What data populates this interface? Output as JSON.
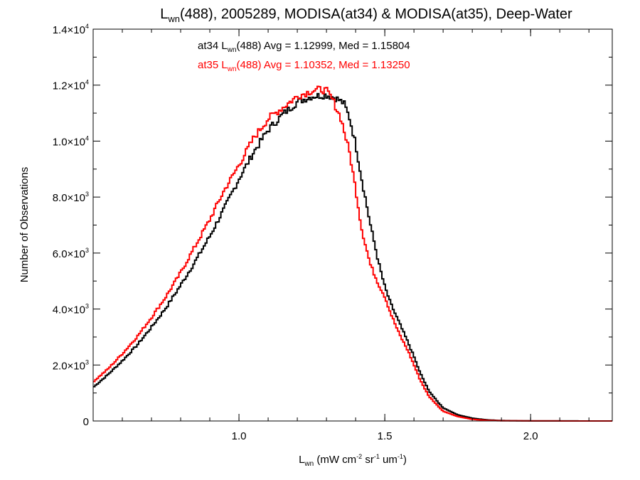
{
  "chart_data": {
    "type": "line",
    "style": "step-histogram",
    "title": {
      "base": "L",
      "sub": "wn",
      "rest": "(488), 2005289, MODISA(at34) & MODISA(at35), Deep-Water"
    },
    "xlabel": {
      "base": "L",
      "sub": "wn",
      "p1": " (mW cm",
      "s1": "-2",
      "p2": " sr",
      "s2": "-1",
      "p3": " um",
      "s3": "-1",
      "p4": ")"
    },
    "ylabel": "Number of Observations",
    "xlim": [
      0.5,
      2.28
    ],
    "ylim": [
      0,
      14000
    ],
    "x_ticks": [
      {
        "value": 1.0,
        "label": "1.0"
      },
      {
        "value": 1.5,
        "label": "1.5"
      },
      {
        "value": 2.0,
        "label": "2.0"
      }
    ],
    "y_ticks": [
      {
        "value": 0,
        "mant": "0",
        "exp": ""
      },
      {
        "value": 2000,
        "mant": "2.0×10",
        "exp": "3"
      },
      {
        "value": 4000,
        "mant": "4.0×10",
        "exp": "3"
      },
      {
        "value": 6000,
        "mant": "6.0×10",
        "exp": "3"
      },
      {
        "value": 8000,
        "mant": "8.0×10",
        "exp": "3"
      },
      {
        "value": 10000,
        "mant": "1.0×10",
        "exp": "4"
      },
      {
        "value": 12000,
        "mant": "1.2×10",
        "exp": "4"
      },
      {
        "value": 14000,
        "mant": "1.4×10",
        "exp": "4"
      }
    ],
    "annotations": [
      {
        "prefix": "at34 L",
        "sub": "wn",
        "rest": "(488) Avg = 1.12999, Med = 1.15804",
        "color": "#000000"
      },
      {
        "prefix": "at35 L",
        "sub": "wn",
        "rest": "(488) Avg = 1.10352, Med = 1.13250",
        "color": "#ff0000"
      }
    ],
    "series": [
      {
        "color": "#000000",
        "x": [
          0.5,
          0.55,
          0.6,
          0.65,
          0.7,
          0.75,
          0.8,
          0.85,
          0.9,
          0.95,
          1.0,
          1.05,
          1.1,
          1.15,
          1.2,
          1.25,
          1.3,
          1.33,
          1.36,
          1.38,
          1.4,
          1.42,
          1.45,
          1.48,
          1.5,
          1.52,
          1.55,
          1.58,
          1.6,
          1.62,
          1.65,
          1.68,
          1.7,
          1.75,
          1.8,
          1.85,
          1.9,
          2.0,
          2.28
        ],
        "y": [
          1200,
          1650,
          2150,
          2700,
          3350,
          4050,
          4850,
          5700,
          6600,
          7600,
          8650,
          9600,
          10400,
          10950,
          11400,
          11600,
          11650,
          11550,
          11350,
          10800,
          9900,
          8700,
          7050,
          5600,
          4800,
          4200,
          3500,
          2800,
          2300,
          1750,
          1100,
          700,
          470,
          220,
          100,
          40,
          15,
          3,
          0
        ]
      },
      {
        "color": "#ff0000",
        "x": [
          0.5,
          0.55,
          0.6,
          0.65,
          0.7,
          0.75,
          0.8,
          0.85,
          0.9,
          0.95,
          1.0,
          1.05,
          1.1,
          1.15,
          1.2,
          1.25,
          1.28,
          1.3,
          1.32,
          1.35,
          1.38,
          1.4,
          1.42,
          1.45,
          1.48,
          1.5,
          1.52,
          1.55,
          1.58,
          1.6,
          1.62,
          1.65,
          1.68,
          1.7,
          1.75,
          1.8,
          1.85,
          1.9,
          2.0,
          2.28
        ],
        "y": [
          1400,
          1850,
          2400,
          3000,
          3700,
          4450,
          5300,
          6250,
          7200,
          8250,
          9150,
          10100,
          10800,
          11200,
          11600,
          11800,
          11850,
          11800,
          11500,
          10800,
          9550,
          8300,
          6900,
          5600,
          4850,
          4450,
          3850,
          3100,
          2500,
          2000,
          1500,
          900,
          560,
          350,
          160,
          60,
          20,
          8,
          2,
          0
        ]
      }
    ]
  }
}
